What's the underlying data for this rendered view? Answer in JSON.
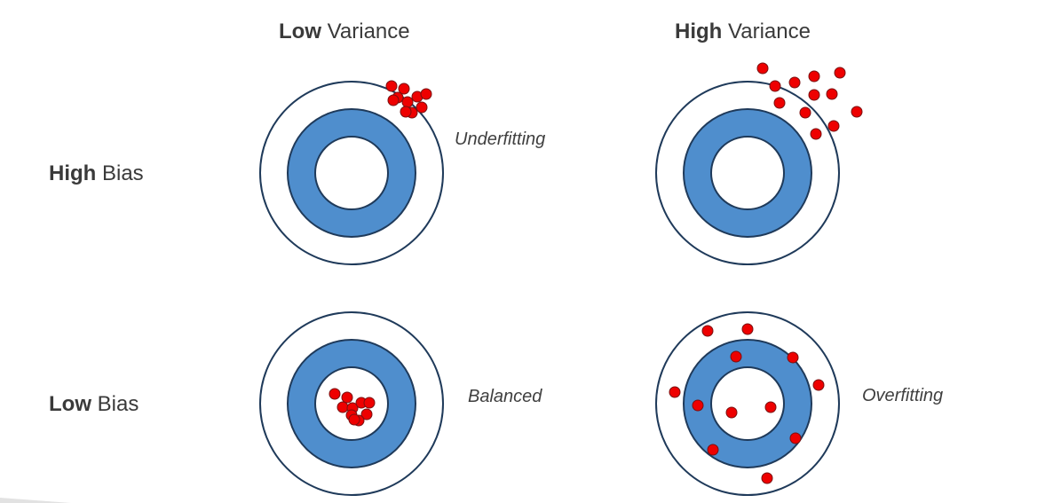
{
  "columns": {
    "low_variance": {
      "strong": "Low",
      "rest": " Variance"
    },
    "high_variance": {
      "strong": "High",
      "rest": " Variance"
    }
  },
  "rows": {
    "high_bias": {
      "strong": "High",
      "rest": " Bias"
    },
    "low_bias": {
      "strong": "Low",
      "rest": " Bias"
    }
  },
  "labels": {
    "underfitting": "Underfitting",
    "balanced": "Balanced",
    "overfitting": "Overfitting"
  },
  "colors": {
    "ring_stroke": "#1f3a5a",
    "band_fill": "#4f8ecd",
    "shot_fill": "#ee0000"
  }
}
